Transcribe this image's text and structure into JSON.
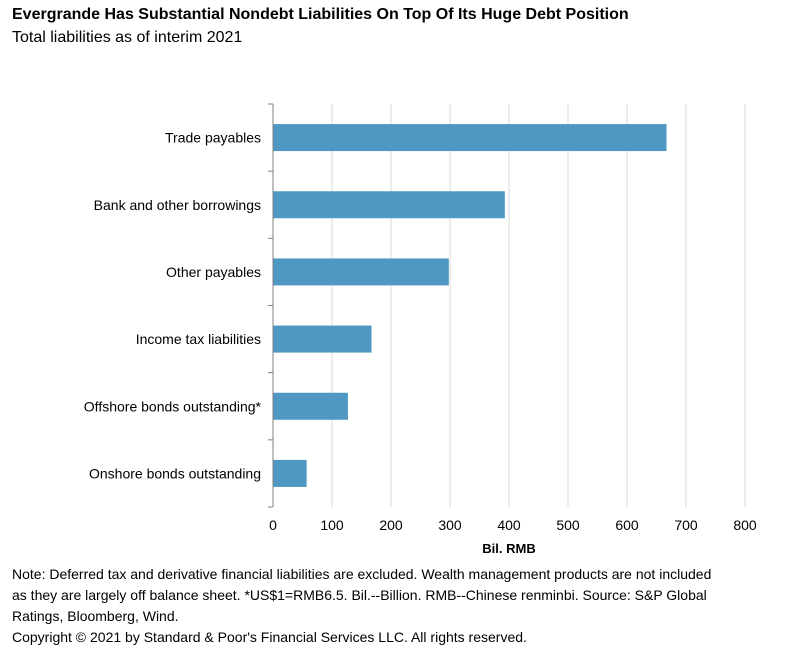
{
  "header": {
    "title": "Evergrande Has Substantial Nondebt Liabilities On Top Of Its Huge Debt Position",
    "subtitle": "Total liabilities as of interim 2021"
  },
  "chart_data": {
    "type": "bar",
    "orientation": "horizontal",
    "categories": [
      "Trade payables",
      "Bank and other borrowings",
      "Other payables",
      "Income tax liabilities",
      "Offshore bonds outstanding*",
      "Onshore bonds outstanding"
    ],
    "values": [
      667,
      393,
      298,
      167,
      127,
      57
    ],
    "xlabel": "Bil. RMB",
    "ylabel": "",
    "xlim": [
      0,
      800
    ],
    "xticks": [
      0,
      100,
      200,
      300,
      400,
      500,
      600,
      700,
      800
    ],
    "grid": "vertical",
    "bar_color": "#4f98c3"
  },
  "footer": {
    "note": "Note: Deferred tax and derivative financial liabilities are excluded. Wealth management products are not included as they are largely off balance sheet. *US$1=RMB6.5. Bil.--Billion. RMB--Chinese renminbi. Source: S&P Global Ratings, Bloomberg, Wind.",
    "copyright": "Copyright © 2021 by Standard & Poor's Financial Services LLC. All rights reserved."
  }
}
